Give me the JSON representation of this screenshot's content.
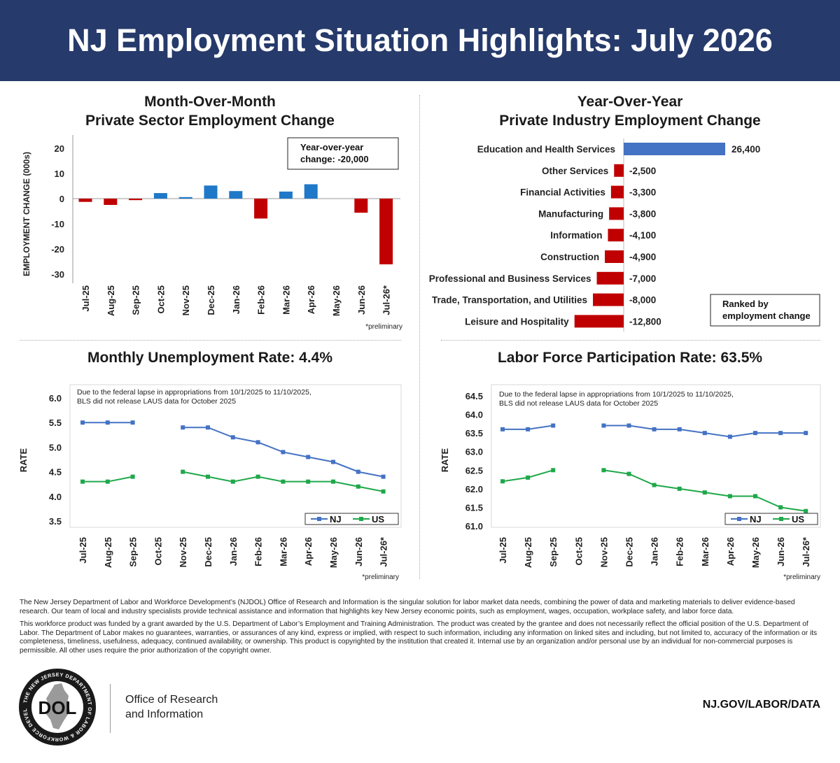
{
  "header": {
    "title": "NJ Employment Situation Highlights: July 2026"
  },
  "colors": {
    "header_bg": "#263a6b",
    "positive_bar": "#1f78c8",
    "negative_bar": "#c00000",
    "nj_line": "#4472c4",
    "us_line": "#1fa84a",
    "education_bar": "#4472c4"
  },
  "panels": {
    "mom": {
      "title_line1": "Month-Over-Month",
      "title_line2": "Private Sector Employment Change",
      "note": "*preliminary",
      "box_line1": "Year-over-year",
      "box_line2": "change: -20,000"
    },
    "yoy": {
      "title_line1": "Year-Over-Year",
      "title_line2": "Private Industry Employment Change",
      "box_line1": "Ranked by",
      "box_line2": "employment change"
    },
    "unemp": {
      "title": "Monthly Unemployment Rate: 4.4%",
      "note": "*preliminary",
      "lapse_line1": "Due to the federal lapse in appropriations from 10/1/2025 to 11/10/2025,",
      "lapse_line2": "BLS did not release LAUS data for October 2025"
    },
    "lfpr": {
      "title": "Labor Force Participation Rate: 63.5%",
      "note": "*preliminary",
      "lapse_line1": "Due to the federal lapse in appropriations from 10/1/2025 to 11/10/2025,",
      "lapse_line2": "BLS did not release LAUS data for October 2025"
    }
  },
  "chart_data": [
    {
      "type": "bar",
      "title": "Month-Over-Month Private Sector Employment Change",
      "ylabel": "EMPLOYMENT CHANGE (000s)",
      "ylim": [
        -30,
        20
      ],
      "yticks": [
        20,
        10,
        0,
        -10,
        -20,
        -30
      ],
      "categories": [
        "Jul-25",
        "Aug-25",
        "Sep-25",
        "Oct-25",
        "Nov-25",
        "Dec-25",
        "Jan-26",
        "Feb-26",
        "Mar-26",
        "Apr-26",
        "May-26",
        "Jun-26",
        "Jul-26*"
      ],
      "values": [
        -1.3,
        -2.5,
        -0.6,
        2.2,
        0.6,
        5.2,
        3.0,
        -7.9,
        2.8,
        5.7,
        0,
        -5.6,
        -26.1
      ]
    },
    {
      "type": "bar",
      "orientation": "horizontal",
      "title": "Year-Over-Year Private Industry Employment Change",
      "categories": [
        "Education and Health Services",
        "Other Services",
        "Financial Activities",
        "Manufacturing",
        "Information",
        "Construction",
        "Professional and Business Services",
        "Trade, Transportation, and Utilities",
        "Leisure and Hospitality"
      ],
      "values": [
        26400,
        -2500,
        -3300,
        -3800,
        -4100,
        -4900,
        -7000,
        -8000,
        -12800
      ],
      "labels": [
        "26,400",
        "-2,500",
        "-3,300",
        "-3,800",
        "-4,100",
        "-4,900",
        "-7,000",
        "-8,000",
        "-12,800"
      ]
    },
    {
      "type": "line",
      "title": "Monthly Unemployment Rate: 4.4%",
      "ylabel": "RATE",
      "ylim": [
        3.5,
        6.0
      ],
      "yticks": [
        "6.0",
        "5.5",
        "5.0",
        "4.5",
        "4.0",
        "3.5"
      ],
      "x": [
        "Jul-25",
        "Aug-25",
        "Sep-25",
        "Oct-25",
        "Nov-25",
        "Dec-25",
        "Jan-26",
        "Feb-26",
        "Mar-26",
        "Apr-26",
        "May-26",
        "Jun-26",
        "Jul-26*"
      ],
      "series": [
        {
          "name": "NJ",
          "values": [
            5.5,
            5.5,
            5.5,
            null,
            5.4,
            5.4,
            5.2,
            5.1,
            4.9,
            4.8,
            4.7,
            4.5,
            4.4
          ]
        },
        {
          "name": "US",
          "values": [
            4.3,
            4.3,
            4.4,
            null,
            4.5,
            4.4,
            4.3,
            4.4,
            4.3,
            4.3,
            4.3,
            4.2,
            4.1
          ]
        }
      ],
      "legend": "bottom-right"
    },
    {
      "type": "line",
      "title": "Labor Force Participation Rate: 63.5%",
      "ylabel": "RATE",
      "ylim": [
        61.0,
        64.5
      ],
      "yticks": [
        "64.5",
        "64.0",
        "63.5",
        "63.0",
        "62.5",
        "62.0",
        "61.5",
        "61.0"
      ],
      "x": [
        "Jul-25",
        "Aug-25",
        "Sep-25",
        "Oct-25",
        "Nov-25",
        "Dec-25",
        "Jan-26",
        "Feb-26",
        "Mar-26",
        "Apr-26",
        "May-26",
        "Jun-26",
        "Jul-26*"
      ],
      "series": [
        {
          "name": "NJ",
          "values": [
            63.6,
            63.6,
            63.7,
            null,
            63.7,
            63.7,
            63.6,
            63.6,
            63.5,
            63.4,
            63.5,
            63.5,
            63.5
          ]
        },
        {
          "name": "US",
          "values": [
            62.2,
            62.3,
            62.5,
            null,
            62.5,
            62.4,
            62.1,
            62.0,
            61.9,
            61.8,
            61.8,
            61.5,
            61.4
          ]
        }
      ],
      "legend": "bottom-right"
    }
  ],
  "footer": {
    "para1": "The New Jersey Department of Labor and Workforce Development’s (NJDOL) Office of Research and Information is the singular solution for labor market data needs, combining the power of data and marketing materials to deliver evidence-based research. Our team of local and industry specialists provide technical assistance and information that highlights key New Jersey economic points, such as employment, wages, occupation, workplace safety, and labor force data.",
    "para2": "This workforce product was funded by a grant awarded by the U.S. Department of Labor’s Employment and Training Administration. The product was created by the grantee and does not necessarily reflect the official position of the U.S. Department of Labor. The Department of Labor makes no guarantees, warranties, or assurances of any kind, express or implied, with respect to such information, including any information on linked sites and including, but not limited to, accuracy of the information or its completeness, timeliness, usefulness, adequacy, continued availability, or ownership. This product is copyrighted by the institution that created it. Internal use by an organization and/or personal use by an individual for non-commercial purposes is permissible. All other uses require the prior authorization of the copyright owner.",
    "office_line1": "Office of Research",
    "office_line2": "and Information",
    "url": "NJ.GOV/LABOR/DATA",
    "logo_text": "DOL",
    "logo_ring": "THE NEW JERSEY DEPARTMENT OF LABOR & WORKFORCE DEVELOPMENT"
  }
}
